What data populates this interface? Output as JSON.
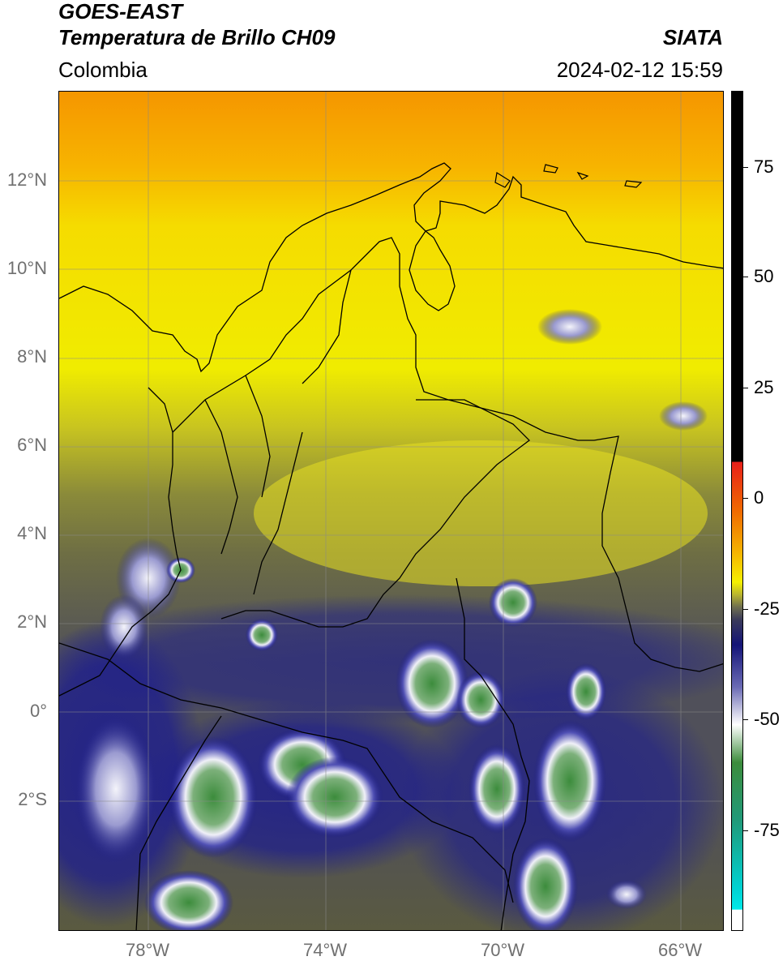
{
  "header": {
    "satellite": "GOES-EAST",
    "product": "Temperatura de Brillo CH09",
    "brand": "SIATA",
    "region": "Colombia",
    "timestamp": "2024-02-12 15:59"
  },
  "axes": {
    "lat_ticks": [
      "12°N",
      "10°N",
      "8°N",
      "6°N",
      "4°N",
      "2°N",
      "0°",
      "2°S"
    ],
    "lon_ticks": [
      "78°W",
      "74°W",
      "70°W",
      "66°W"
    ]
  },
  "colorbar": {
    "ticks": [
      "75",
      "50",
      "25",
      "0",
      "-25",
      "-50",
      "-75"
    ],
    "colors": {
      "black": "#000000",
      "red": "#e8201a",
      "orange": "#f08c00",
      "yellow": "#f5f000",
      "olive": "#6e6e32",
      "navy": "#141478",
      "white": "#ffffff",
      "green": "#3c8c3c",
      "teal": "#20b4a0",
      "cyan": "#00e8e8"
    }
  },
  "map": {
    "colors": {
      "north_orange": "#f5a000",
      "mid_yellow": "#f0e600",
      "olive": "#7a7a3c",
      "navy": "#1e1e8c",
      "convective_white": "#e6e6f5",
      "convective_green": "#4b9650"
    }
  }
}
